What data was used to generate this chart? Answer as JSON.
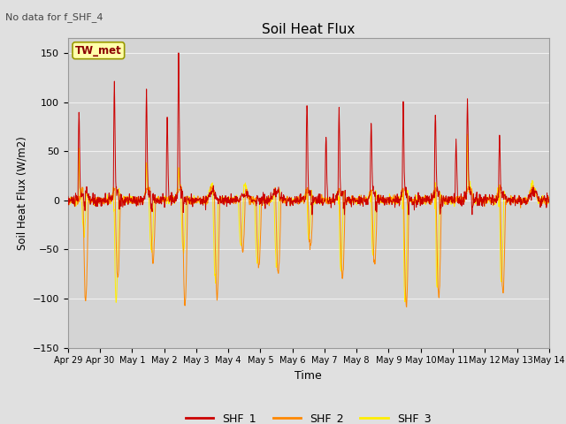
{
  "title": "Soil Heat Flux",
  "ylabel": "Soil Heat Flux (W/m2)",
  "xlabel": "Time",
  "annotation": "No data for f_SHF_4",
  "box_label": "TW_met",
  "ylim": [
    -150,
    165
  ],
  "yticks": [
    -150,
    -100,
    -50,
    0,
    50,
    100,
    150
  ],
  "xtick_labels": [
    "Apr 29",
    "Apr 30",
    "May 1",
    "May 2",
    "May 3",
    "May 4",
    "May 5",
    "May 6",
    "May 7",
    "May 8",
    "May 9",
    "May 10",
    "May 11",
    "May 12",
    "May 13",
    "May 14"
  ],
  "series_colors": {
    "SHF_1": "#cc0000",
    "SHF_2": "#ff8800",
    "SHF_3": "#ffee00"
  },
  "background_color": "#e0e0e0",
  "plot_bg_color": "#d4d4d4",
  "grid_color": "#f0f0f0",
  "n_days": 15,
  "n_points_per_day": 96
}
